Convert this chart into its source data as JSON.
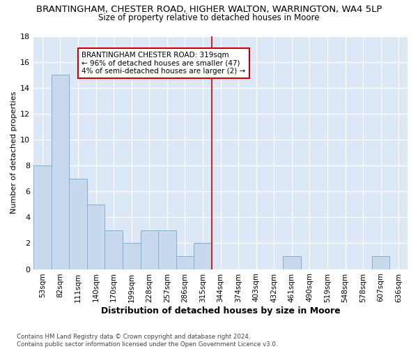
{
  "title1": "BRANTINGHAM, CHESTER ROAD, HIGHER WALTON, WARRINGTON, WA4 5LP",
  "title2": "Size of property relative to detached houses in Moore",
  "xlabel": "Distribution of detached houses by size in Moore",
  "ylabel": "Number of detached properties",
  "bar_labels": [
    "53sqm",
    "82sqm",
    "111sqm",
    "140sqm",
    "170sqm",
    "199sqm",
    "228sqm",
    "257sqm",
    "286sqm",
    "315sqm",
    "344sqm",
    "374sqm",
    "403sqm",
    "432sqm",
    "461sqm",
    "490sqm",
    "519sqm",
    "548sqm",
    "578sqm",
    "607sqm",
    "636sqm"
  ],
  "bar_values": [
    8,
    15,
    7,
    5,
    3,
    2,
    3,
    3,
    1,
    2,
    0,
    0,
    0,
    0,
    1,
    0,
    0,
    0,
    0,
    1,
    0
  ],
  "bar_color": "#c9d9ed",
  "bar_edgecolor": "#7fafd4",
  "vline_x": 9.5,
  "vline_color": "#cc0000",
  "annotation_text": "BRANTINGHAM CHESTER ROAD: 319sqm\n← 96% of detached houses are smaller (47)\n4% of semi-detached houses are larger (2) →",
  "annotation_box_edgecolor": "#cc0000",
  "ylim": [
    0,
    18
  ],
  "yticks": [
    0,
    2,
    4,
    6,
    8,
    10,
    12,
    14,
    16,
    18
  ],
  "footer": "Contains HM Land Registry data © Crown copyright and database right 2024.\nContains public sector information licensed under the Open Government Licence v3.0.",
  "bg_color": "#dce8f5",
  "fig_bg_color": "#ffffff",
  "title1_fontsize": 9.5,
  "title2_fontsize": 8.5,
  "xlabel_fontsize": 9,
  "ylabel_fontsize": 8
}
